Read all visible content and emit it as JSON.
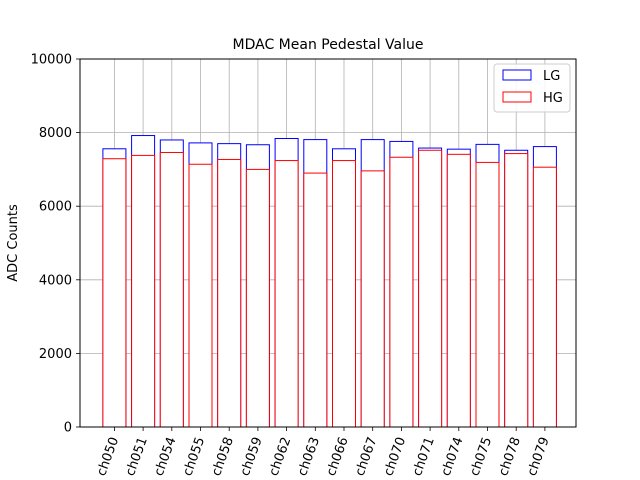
{
  "chart_data": {
    "type": "bar",
    "title": "MDAC Mean Pedestal Value",
    "xlabel": "",
    "ylabel": "ADC Counts",
    "ylim": [
      0,
      10000
    ],
    "yticks": [
      0,
      2000,
      4000,
      6000,
      8000,
      10000
    ],
    "grid": true,
    "legend_position": "top-right",
    "categories": [
      "ch050",
      "ch051",
      "ch054",
      "ch055",
      "ch058",
      "ch059",
      "ch062",
      "ch063",
      "ch066",
      "ch067",
      "ch070",
      "ch071",
      "ch074",
      "ch075",
      "ch078",
      "ch079"
    ],
    "series": [
      {
        "name": "LG",
        "color": "#0000ff",
        "values": [
          7560,
          7920,
          7800,
          7720,
          7700,
          7670,
          7840,
          7810,
          7560,
          7810,
          7760,
          7580,
          7550,
          7680,
          7520,
          7620
        ]
      },
      {
        "name": "HG",
        "color": "#ff0000",
        "values": [
          7290,
          7380,
          7460,
          7140,
          7270,
          7000,
          7240,
          6900,
          7240,
          6960,
          7330,
          7520,
          7410,
          7190,
          7430,
          7060
        ]
      }
    ]
  }
}
